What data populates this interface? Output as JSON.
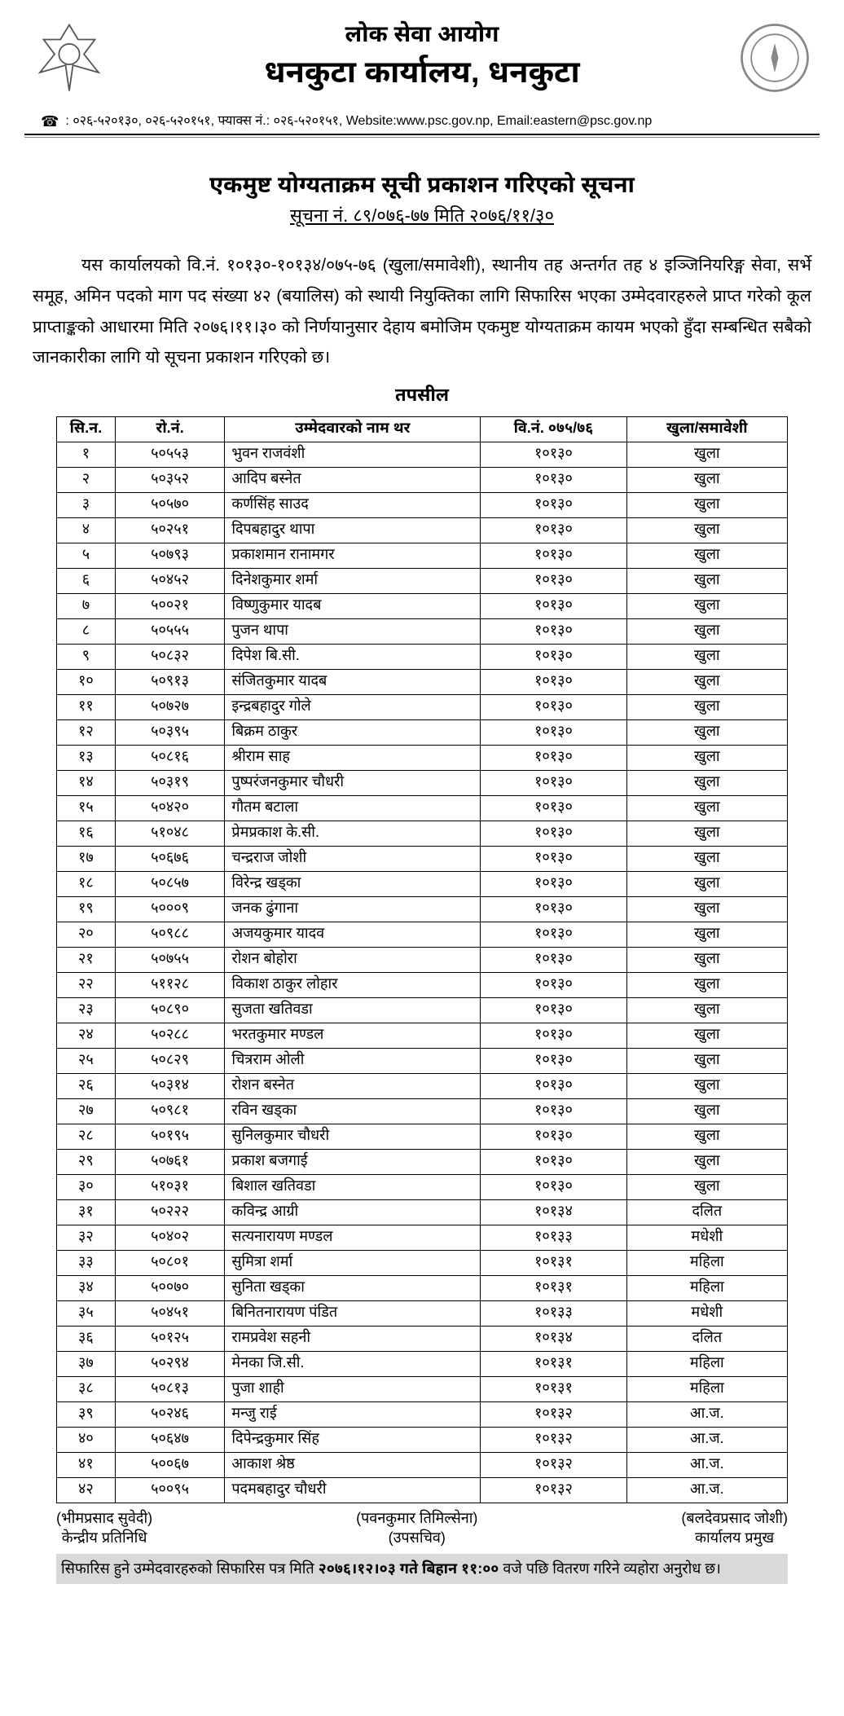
{
  "header": {
    "org_top": "लोक सेवा आयोग",
    "org_main": "धनकुटा कार्यालय, धनकुटा",
    "contact_line": ": ०२६-५२०१३०,  ०२६-५२०१५१,  फ्याक्स नं.: ०२६-५२०१५१,   Website:www.psc.gov.np,   Email:eastern@psc.gov.np"
  },
  "notice": {
    "title": "एकमुष्ट योग्यताक्रम सूची प्रकाशन गरिएको सूचना",
    "sub": "सूचना नं. ८९/०७६-७७ मिति २०७६/११/३०"
  },
  "body": "यस कार्यालयको वि.नं. १०१३०-१०१३४/०७५-७६ (खुला/समावेशी), स्थानीय तह अन्तर्गत तह ४ इञ्जिनियरिङ्ग सेवा, सर्भे समूह, अमिन पदको माग पद संख्या ४२ (बयालिस) को स्थायी नियुक्तिका लागि सिफारिस भएका उम्मेदवारहरुले प्राप्त गरेको कूल प्राप्ताङ्कको आधारमा मिति २०७६।११।३० को निर्णयानुसार देहाय बमोजिम एकमुष्ट योग्यताक्रम कायम भएको हुँदा सम्बन्धित सबैको जानकारीका लागि यो सूचना प्रकाशन गरिएको छ।",
  "tapasil": "तपसील",
  "table": {
    "headers": [
      "सि.न.",
      "रो.नं.",
      "उम्मेदवारको नाम थर",
      "वि.नं. ०७५/७६",
      "खुला/समावेशी"
    ],
    "rows": [
      [
        "१",
        "५०५५३",
        "भुवन राजवंशी",
        "१०१३०",
        "खुला"
      ],
      [
        "२",
        "५०३५२",
        "आदिप बस्नेत",
        "१०१३०",
        "खुला"
      ],
      [
        "३",
        "५०५७०",
        "कर्णसिंह साउद",
        "१०१३०",
        "खुला"
      ],
      [
        "४",
        "५०२५१",
        "दिपबहादुर थापा",
        "१०१३०",
        "खुला"
      ],
      [
        "५",
        "५०७९३",
        "प्रकाशमान रानामगर",
        "१०१३०",
        "खुला"
      ],
      [
        "६",
        "५०४५२",
        "दिनेशकुमार शर्मा",
        "१०१३०",
        "खुला"
      ],
      [
        "७",
        "५००२१",
        "विष्णुकुमार यादब",
        "१०१३०",
        "खुला"
      ],
      [
        "८",
        "५०५५५",
        "पुजन थापा",
        "१०१३०",
        "खुला"
      ],
      [
        "९",
        "५०८३२",
        "दिपेश बि.सी.",
        "१०१३०",
        "खुला"
      ],
      [
        "१०",
        "५०९१३",
        "संजितकुमार यादब",
        "१०१३०",
        "खुला"
      ],
      [
        "११",
        "५०७२७",
        "इन्द्रबहादुर गोले",
        "१०१३०",
        "खुला"
      ],
      [
        "१२",
        "५०३९५",
        "बिक्रम ठाकुर",
        "१०१३०",
        "खुला"
      ],
      [
        "१३",
        "५०८१६",
        "श्रीराम साह",
        "१०१३०",
        "खुला"
      ],
      [
        "१४",
        "५०३१९",
        "पुष्परंजनकुमार चौधरी",
        "१०१३०",
        "खुला"
      ],
      [
        "१५",
        "५०४२०",
        "गौतम बटाला",
        "१०१३०",
        "खुला"
      ],
      [
        "१६",
        "५१०४८",
        "प्रेमप्रकाश के.सी.",
        "१०१३०",
        "खुला"
      ],
      [
        "१७",
        "५०६७६",
        "चन्द्रराज जोशी",
        "१०१३०",
        "खुला"
      ],
      [
        "१८",
        "५०८५७",
        "विरेन्द्र खड्का",
        "१०१३०",
        "खुला"
      ],
      [
        "१९",
        "५०००९",
        "जनक ढुंगाना",
        "१०१३०",
        "खुला"
      ],
      [
        "२०",
        "५०९८८",
        "अजयकुमार यादव",
        "१०१३०",
        "खुला"
      ],
      [
        "२१",
        "५०७५५",
        "रोशन बोहोरा",
        "१०१३०",
        "खुला"
      ],
      [
        "२२",
        "५११२८",
        "विकाश ठाकुर लोहार",
        "१०१३०",
        "खुला"
      ],
      [
        "२३",
        "५०८९०",
        "सुजता खतिवडा",
        "१०१३०",
        "खुला"
      ],
      [
        "२४",
        "५०२८८",
        "भरतकुमार मण्डल",
        "१०१३०",
        "खुला"
      ],
      [
        "२५",
        "५०८२९",
        "चित्रराम ओली",
        "१०१३०",
        "खुला"
      ],
      [
        "२६",
        "५०३१४",
        "रोशन बस्नेत",
        "१०१३०",
        "खुला"
      ],
      [
        "२७",
        "५०९८१",
        "रविन खड्का",
        "१०१३०",
        "खुला"
      ],
      [
        "२८",
        "५०१९५",
        "सुनिलकुमार चौधरी",
        "१०१३०",
        "खुला"
      ],
      [
        "२९",
        "५०७६१",
        "प्रकाश बजगाई",
        "१०१३०",
        "खुला"
      ],
      [
        "३०",
        "५१०३१",
        "बिशाल खतिवडा",
        "१०१३०",
        "खुला"
      ],
      [
        "३१",
        "५०२२२",
        "कविन्द्र आग्री",
        "१०१३४",
        "दलित"
      ],
      [
        "३२",
        "५०४०२",
        "सत्यनारायण मण्डल",
        "१०१३३",
        "मधेशी"
      ],
      [
        "३३",
        "५०८०१",
        "सुमित्रा शर्मा",
        "१०१३१",
        "महिला"
      ],
      [
        "३४",
        "५००७०",
        "सुनिता खड्का",
        "१०१३१",
        "महिला"
      ],
      [
        "३५",
        "५०४५१",
        "बिनितनारायण पंडित",
        "१०१३३",
        "मधेशी"
      ],
      [
        "३६",
        "५०१२५",
        "रामप्रवेश सहनी",
        "१०१३४",
        "दलित"
      ],
      [
        "३७",
        "५०२९४",
        "मेनका जि.सी.",
        "१०१३१",
        "महिला"
      ],
      [
        "३८",
        "५०८१३",
        "पुजा शाही",
        "१०१३१",
        "महिला"
      ],
      [
        "३९",
        "५०२४६",
        "मन्जु राई",
        "१०१३२",
        "आ.ज."
      ],
      [
        "४०",
        "५०६४७",
        "दिपेन्द्रकुमार सिंह",
        "१०१३२",
        "आ.ज."
      ],
      [
        "४१",
        "५००६७",
        "आकाश श्रेष्ठ",
        "१०१३२",
        "आ.ज."
      ],
      [
        "४२",
        "५००९५",
        "पदमबहादुर चौधरी",
        "१०१३२",
        "आ.ज."
      ]
    ]
  },
  "signatories": [
    {
      "name": "(भीमप्रसाद सुवेदी)",
      "role": "केन्द्रीय प्रतिनिधि"
    },
    {
      "name": "(पवनकुमार तिमिल्सेना)",
      "role": "(उपसचिव)"
    },
    {
      "name": "(बलदेवप्रसाद जोशी)",
      "role": "कार्यालय प्रमुख"
    }
  ],
  "footnote": {
    "prefix": "सिफारिस हुने उम्मेदवारहरुको सिफारिस पत्र मिति ",
    "bold": "२०७६।१२।०३ गते बिहान ११:००",
    "suffix": " वजे पछि वितरण गरिने व्यहोरा अनुरोध छ।"
  },
  "colors": {
    "text": "#000000",
    "bg": "#ffffff",
    "highlight": "#d9d9d9",
    "border": "#000000"
  }
}
